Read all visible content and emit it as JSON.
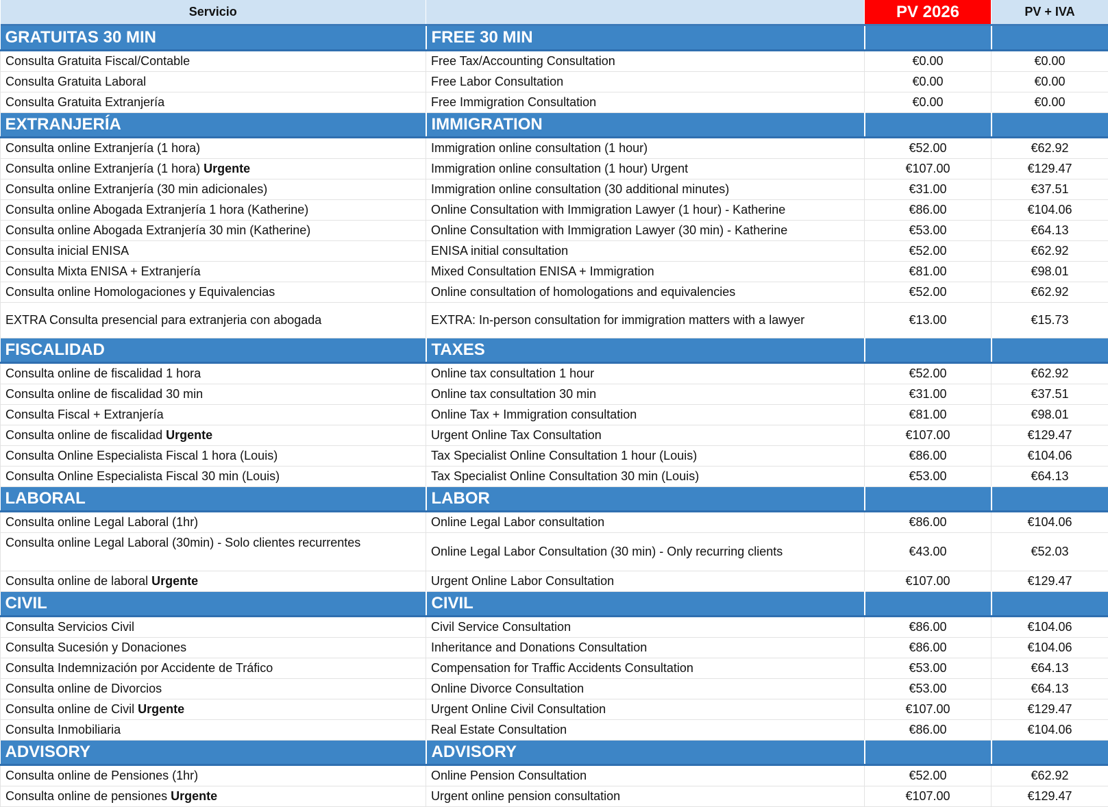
{
  "header": {
    "col1": "Servicio",
    "col2": "",
    "col3": "PV 2026",
    "col4": "PV + IVA"
  },
  "colors": {
    "header_bg": "#cfe2f3",
    "section_bg": "#3d85c6",
    "highlight": "#ff0000"
  },
  "sections": [
    {
      "es": "GRATUITAS 30 MIN",
      "en": "FREE 30 MIN",
      "rows": [
        {
          "es": "Consulta Gratuita Fiscal/Contable",
          "en": "Free Tax/Accounting Consultation",
          "pv": "€0.00",
          "iva": "€0.00"
        },
        {
          "es": "Consulta Gratuita Laboral",
          "en": "Free Labor Consultation",
          "pv": "€0.00",
          "iva": "€0.00"
        },
        {
          "es": "Consulta Gratuita Extranjería",
          "en": "Free Immigration Consultation",
          "pv": "€0.00",
          "iva": "€0.00"
        }
      ]
    },
    {
      "es": "EXTRANJERÍA",
      "en": "IMMIGRATION",
      "rows": [
        {
          "es": "Consulta online Extranjería (1 hora)",
          "en": "Immigration online consultation (1 hour)",
          "pv": "€52.00",
          "iva": "€62.92"
        },
        {
          "es": "Consulta online Extranjería (1 hora) ",
          "es_bold": "Urgente",
          "en": "Immigration online consultation (1 hour) Urgent",
          "pv": "€107.00",
          "iva": "€129.47"
        },
        {
          "es": "Consulta online Extranjería (30 min adicionales)",
          "en": "Immigration online consultation (30 additional minutes)",
          "pv": "€31.00",
          "iva": "€37.51"
        },
        {
          "es": "Consulta online Abogada Extranjería 1 hora (Katherine)",
          "en": "Online Consultation with Immigration Lawyer (1 hour) - Katherine",
          "pv": "€86.00",
          "iva": "€104.06"
        },
        {
          "es": "Consulta online Abogada Extranjería 30 min (Katherine)",
          "en": "Online Consultation with Immigration Lawyer (30 min) - Katherine",
          "pv": "€53.00",
          "iva": "€64.13"
        },
        {
          "es": "Consulta inicial ENISA",
          "en": "ENISA initial consultation",
          "pv": "€52.00",
          "iva": "€62.92"
        },
        {
          "es": "Consulta Mixta ENISA + Extranjería",
          "en": "Mixed Consultation ENISA + Immigration",
          "pv": "€81.00",
          "iva": "€98.01"
        },
        {
          "es": "Consulta online Homologaciones y Equivalencias",
          "en": "Online consultation of homologations and equivalencies",
          "pv": "€52.00",
          "iva": "€62.92"
        },
        {
          "es": "EXTRA Consulta presencial para extranjeria con abogada",
          "en": "EXTRA: In-person consultation for immigration matters with a lawyer",
          "pv": "€13.00",
          "iva": "€15.73",
          "tall": true
        }
      ]
    },
    {
      "es": "FISCALIDAD",
      "en": "TAXES",
      "rows": [
        {
          "es": "Consulta online de fiscalidad 1 hora",
          "en": "Online tax consultation 1 hour",
          "pv": "€52.00",
          "iva": "€62.92"
        },
        {
          "es": "Consulta online de fiscalidad 30 min",
          "en": "Online tax consultation 30 min",
          "pv": "€31.00",
          "iva": "€37.51"
        },
        {
          "es": "Consulta Fiscal + Extranjería",
          "en": "Online Tax + Immigration consultation",
          "pv": "€81.00",
          "iva": "€98.01"
        },
        {
          "es": "Consulta online de fiscalidad ",
          "es_bold": "Urgente",
          "en": "Urgent Online Tax Consultation",
          "pv": "€107.00",
          "iva": "€129.47"
        },
        {
          "es": "Consulta Online Especialista Fiscal 1 hora (Louis)",
          "en": "Tax Specialist Online Consultation 1 hour (Louis)",
          "pv": "€86.00",
          "iva": "€104.06"
        },
        {
          "es": "Consulta Online Especialista Fiscal 30 min (Louis)",
          "en": "Tax Specialist Online Consultation 30 min (Louis)",
          "pv": "€53.00",
          "iva": "€64.13"
        }
      ]
    },
    {
      "es": "LABORAL",
      "en": "LABOR",
      "rows": [
        {
          "es": "Consulta online Legal Laboral (1hr)",
          "en": "Online Legal Labor consultation",
          "pv": "€86.00",
          "iva": "€104.06"
        },
        {
          "es": "Consulta online Legal Laboral (30min) - Solo clientes recurrentes",
          "en": "Online Legal Labor Consultation (30 min) - Only recurring clients",
          "pv": "€43.00",
          "iva": "€52.03",
          "tall": true,
          "es_top": true
        },
        {
          "es": "Consulta online de laboral ",
          "es_bold": "Urgente",
          "en": "Urgent Online Labor Consultation",
          "pv": "€107.00",
          "iva": "€129.47"
        }
      ]
    },
    {
      "es": "CIVIL",
      "en": "CIVIL",
      "rows": [
        {
          "es": "Consulta Servicios Civil",
          "en": "Civil Service Consultation",
          "pv": "€86.00",
          "iva": "€104.06"
        },
        {
          "es": "Consulta Sucesión y Donaciones",
          "en": "Inheritance and Donations Consultation",
          "pv": "€86.00",
          "iva": "€104.06"
        },
        {
          "es": "Consulta Indemnización por Accidente de Tráfico",
          "en": "Compensation for Traffic Accidents Consultation",
          "pv": "€53.00",
          "iva": "€64.13"
        },
        {
          "es": "Consulta online de Divorcios",
          "en": "Online Divorce Consultation",
          "pv": "€53.00",
          "iva": "€64.13"
        },
        {
          "es": "Consulta online de Civil ",
          "es_bold": "Urgente",
          "en": "Urgent Online Civil Consultation",
          "pv": "€107.00",
          "iva": "€129.47"
        },
        {
          "es": "Consulta Inmobiliaria",
          "en": "Real Estate Consultation",
          "pv": "€86.00",
          "iva": "€104.06"
        }
      ]
    },
    {
      "es": "ADVISORY",
      "en": "ADVISORY",
      "rows": [
        {
          "es": "Consulta online de Pensiones (1hr)",
          "en": "Online Pension Consultation",
          "pv": "€52.00",
          "iva": "€62.92"
        },
        {
          "es": "Consulta online de pensiones ",
          "es_bold": "Urgente",
          "en": "Urgent online pension consultation",
          "pv": "€107.00",
          "iva": "€129.47"
        }
      ]
    }
  ]
}
